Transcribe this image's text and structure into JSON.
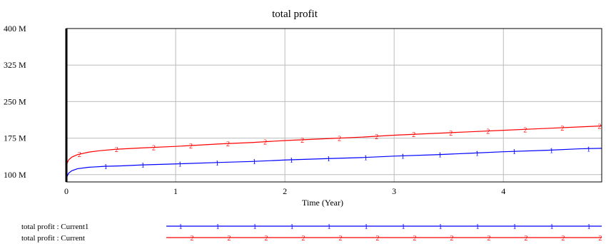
{
  "chart_data": {
    "type": "line",
    "title": "total profit",
    "xlabel": "Time (Year)",
    "ylabel": "",
    "xlim": [
      0,
      4.9
    ],
    "ylim": [
      85,
      400
    ],
    "x_ticks": [
      0,
      1,
      2,
      3,
      4
    ],
    "x_tick_labels": [
      "0",
      "1",
      "2",
      "3",
      "4"
    ],
    "y_ticks": [
      100,
      175,
      250,
      325,
      400
    ],
    "y_tick_labels": [
      "100 M",
      "175 M",
      "250 M",
      "325 M",
      "400 M"
    ],
    "grid": true,
    "series": [
      {
        "name": "total profit : Current1",
        "marker": "1",
        "color": "#0000ff",
        "x": [
          0,
          0.02,
          0.05,
          0.1,
          0.2,
          0.35,
          0.5,
          0.7,
          1,
          1.4,
          1.7,
          2,
          2.4,
          2.7,
          3,
          3.4,
          3.7,
          4,
          4.4,
          4.7,
          4.9
        ],
        "y": [
          93,
          103,
          108,
          112,
          115,
          117,
          118,
          120,
          122,
          125,
          127,
          130,
          133,
          135,
          138,
          141,
          144,
          147,
          150,
          153,
          154
        ]
      },
      {
        "name": "total profit : Current",
        "marker": "2",
        "color": "#ff0000",
        "x": [
          0,
          0.02,
          0.05,
          0.1,
          0.2,
          0.3,
          0.45,
          0.7,
          1,
          1.4,
          1.7,
          2,
          2.4,
          2.7,
          3,
          3.4,
          3.7,
          4,
          4.4,
          4.7,
          4.9
        ],
        "y": [
          120,
          130,
          136,
          141,
          146,
          149,
          152,
          155,
          158,
          163,
          166,
          170,
          174,
          177,
          181,
          185,
          188,
          191,
          195,
          198,
          200
        ]
      }
    ],
    "legend_position": "bottom-left"
  }
}
